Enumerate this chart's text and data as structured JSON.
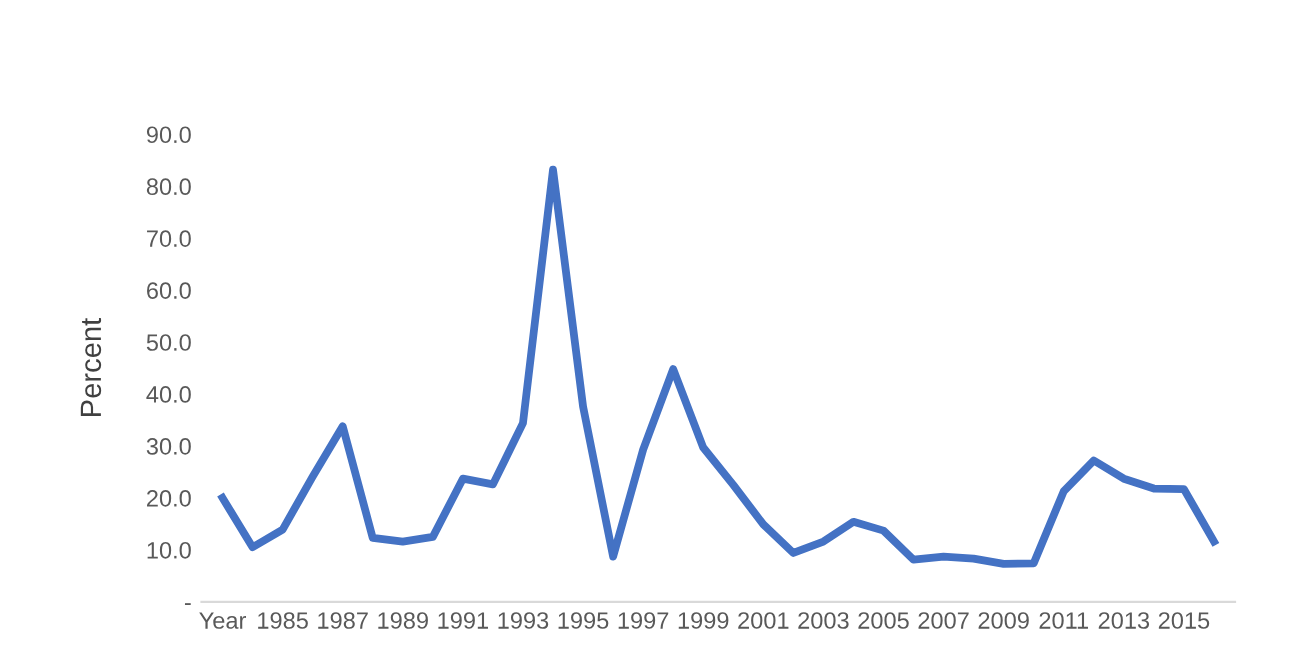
{
  "chart_data": {
    "type": "line",
    "ylabel": "Percent",
    "categories": [
      "Year",
      null,
      "1985",
      null,
      "1987",
      null,
      "1989",
      null,
      "1991",
      null,
      "1993",
      null,
      "1995",
      null,
      "1997",
      null,
      "1999",
      null,
      "2001",
      null,
      "2003",
      null,
      "2005",
      null,
      "2007",
      null,
      "2009",
      null,
      "2011",
      null,
      "2013",
      null,
      "2015",
      null
    ],
    "series": [
      {
        "color": "#4472c4",
        "values": [
          20.0,
          10.5,
          13.9,
          24.1,
          33.8,
          12.3,
          11.6,
          12.5,
          23.7,
          22.6,
          34.4,
          83.2,
          37.6,
          8.7,
          29.3,
          44.8,
          29.7,
          22.5,
          14.9,
          9.4,
          11.6,
          15.4,
          13.7,
          8.1,
          8.7,
          8.3,
          7.3,
          7.4,
          21.3,
          27.2,
          23.7,
          21.8,
          21.7,
          11.6
        ]
      }
    ],
    "ylim": [
      0,
      90
    ],
    "yticks": [
      {
        "value": 0,
        "label": "-"
      },
      {
        "value": 10,
        "label": "10.0"
      },
      {
        "value": 20,
        "label": "20.0"
      },
      {
        "value": 30,
        "label": "30.0"
      },
      {
        "value": 40,
        "label": "40.0"
      },
      {
        "value": 50,
        "label": "50.0"
      },
      {
        "value": 60,
        "label": "60.0"
      },
      {
        "value": 70,
        "label": "70.0"
      },
      {
        "value": 80,
        "label": "80.0"
      },
      {
        "value": 90,
        "label": "90.0"
      }
    ],
    "grid": false,
    "marker": "none",
    "line_style": "solid"
  }
}
